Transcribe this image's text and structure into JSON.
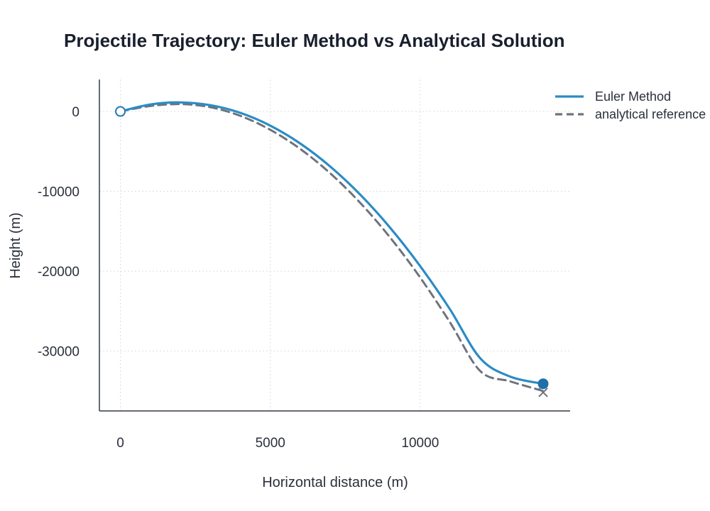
{
  "chart_data": {
    "type": "line",
    "title": "Projectile Trajectory: Euler Method vs Analytical Solution",
    "xlabel": "Horizontal distance (m)",
    "ylabel": "Height (m)",
    "xlim": [
      -700,
      15000
    ],
    "ylim": [
      -37500,
      4000
    ],
    "xticks": [
      0,
      5000,
      10000
    ],
    "yticks": [
      0,
      -10000,
      -20000,
      -30000
    ],
    "grid": true,
    "legend_position": "top-right",
    "series": [
      {
        "name": "Euler Method",
        "style": "solid",
        "color": "#2b8cc4",
        "x": [
          0,
          1000,
          2000,
          3000,
          4000,
          5000,
          6000,
          7000,
          8000,
          9000,
          10000,
          11000,
          12000,
          13000,
          14100
        ],
        "y": [
          0,
          870,
          1130,
          780,
          -180,
          -1780,
          -4020,
          -6900,
          -10420,
          -14580,
          -19380,
          -24820,
          -30900,
          -33200,
          -34100
        ]
      },
      {
        "name": "analytical reference",
        "style": "dashed",
        "color": "#6e737d",
        "x": [
          0,
          1000,
          2000,
          3000,
          4000,
          5000,
          6000,
          7000,
          8000,
          9000,
          10000,
          11000,
          12000,
          13000,
          14100
        ],
        "y": [
          0,
          680,
          920,
          530,
          -550,
          -2300,
          -4700,
          -7750,
          -11450,
          -15800,
          -20800,
          -26450,
          -32500,
          -33800,
          -35000
        ]
      }
    ],
    "markers": [
      {
        "name": "start",
        "shape": "open-circle",
        "x": 0,
        "y": 0,
        "color": "#1f77b4"
      },
      {
        "name": "euler-end",
        "shape": "filled-circle",
        "x": 14100,
        "y": -34100,
        "color": "#1f6fa8"
      },
      {
        "name": "analytical-end",
        "shape": "x",
        "x": 14100,
        "y": -35000,
        "color": "#6e737d"
      }
    ]
  }
}
